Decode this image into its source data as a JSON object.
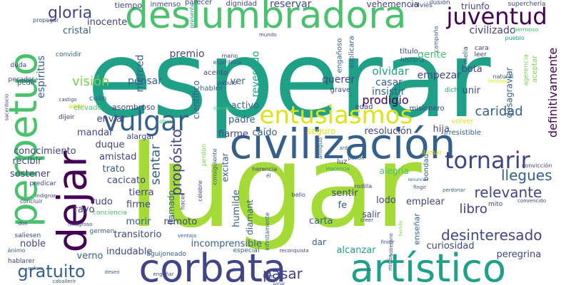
{
  "palette": {
    "background": "#ffffff",
    "green": "#a5db36",
    "midgreen": "#4ac16d",
    "lightgreen": "#7ad151",
    "teal": "#1fa187",
    "blue": "#2a788e",
    "steel": "#355f8d",
    "indigo": "#414487",
    "purple": "#440154",
    "yellow": "#dde318"
  },
  "words": [
    {
      "id": "word-esperar",
      "text": "esperar"
    },
    {
      "id": "word-lugar",
      "text": "lugar"
    },
    {
      "id": "word-deslumbradora",
      "text": "deslumbradora"
    },
    {
      "id": "word-civilizacion",
      "text": "civilización"
    },
    {
      "id": "word-perpetuo",
      "text": "perpetuo"
    },
    {
      "id": "word-artistico",
      "text": "artístico"
    },
    {
      "id": "word-corbata",
      "text": "corbata"
    },
    {
      "id": "word-dejar",
      "text": "dejar"
    },
    {
      "id": "word-entusiasmos",
      "text": "entusiasmos"
    },
    {
      "id": "word-vulgar",
      "text": "vulgar"
    },
    {
      "id": "word-juventud",
      "text": "juventud"
    },
    {
      "id": "word-tornarir",
      "text": "tornarir"
    },
    {
      "id": "word-gloria",
      "text": "gloria"
    },
    {
      "id": "word-desinteresado",
      "text": "desinteresado"
    },
    {
      "id": "word-gratuito",
      "text": "gratuito"
    },
    {
      "id": "word-caridad",
      "text": "caridad"
    },
    {
      "id": "word-relevante",
      "text": "relevante"
    },
    {
      "id": "word-llegues",
      "text": "llegues"
    },
    {
      "id": "word-libro",
      "text": "libro"
    },
    {
      "id": "word-pasar",
      "text": "pasar"
    },
    {
      "id": "word-vision",
      "text": "visión"
    },
    {
      "id": "word-proposito",
      "text": "propósito"
    },
    {
      "id": "word-sentar",
      "text": "sentar"
    },
    {
      "id": "word-prodigio",
      "text": "prodigio"
    },
    {
      "id": "word-definitivamente",
      "text": "definitivamente"
    },
    {
      "id": "word-civilizado",
      "text": "civilizado"
    },
    {
      "id": "word-inocente",
      "text": "inocente"
    },
    {
      "id": "word-cristal",
      "text": "cristal"
    },
    {
      "id": "word-reservar",
      "text": "reservar"
    },
    {
      "id": "word-triunfo",
      "text": "triunfo"
    },
    {
      "id": "word-vehemencia",
      "text": "vehemencia"
    },
    {
      "id": "word-premio",
      "text": "premio"
    },
    {
      "id": "word-merced",
      "text": "merced"
    },
    {
      "id": "word-espiritus",
      "text": "espíritus"
    },
    {
      "id": "word-pensar",
      "text": "pensar"
    },
    {
      "id": "word-ver",
      "text": "ver"
    },
    {
      "id": "word-revestido",
      "text": "revestido"
    },
    {
      "id": "word-olvidar",
      "text": "olvidar"
    },
    {
      "id": "word-casar",
      "text": "casar"
    },
    {
      "id": "word-insistir",
      "text": "insistir"
    },
    {
      "id": "word-querer",
      "text": "querer"
    },
    {
      "id": "word-gente",
      "text": "gente"
    },
    {
      "id": "word-empezar",
      "text": "empezar"
    },
    {
      "id": "word-bota",
      "text": "bota"
    },
    {
      "id": "word-unir",
      "text": "unir"
    },
    {
      "id": "word-desagraviar",
      "text": "desagraviar"
    },
    {
      "id": "word-cientifico",
      "text": "científico"
    },
    {
      "id": "word-activo",
      "text": "activo"
    },
    {
      "id": "word-padre",
      "text": "padre"
    },
    {
      "id": "word-enviar",
      "text": "enviar"
    },
    {
      "id": "word-mandar",
      "text": "mandar"
    },
    {
      "id": "word-conocimiento",
      "text": "conocimiento"
    },
    {
      "id": "word-recibir",
      "text": "recibir"
    },
    {
      "id": "word-sostener",
      "text": "sostener"
    },
    {
      "id": "word-duque",
      "text": "duque"
    },
    {
      "id": "word-amistad",
      "text": "amistad"
    },
    {
      "id": "word-trato",
      "text": "trato"
    },
    {
      "id": "word-cacicato",
      "text": "cacicato"
    },
    {
      "id": "word-tierra",
      "text": "tierra"
    },
    {
      "id": "word-firme",
      "text": "firme"
    },
    {
      "id": "word-rudo",
      "text": "rudo"
    },
    {
      "id": "word-rayo",
      "text": "rayo"
    },
    {
      "id": "word-llamado",
      "text": "llamado"
    },
    {
      "id": "word-remoto",
      "text": "remoto"
    },
    {
      "id": "word-morir",
      "text": "morir"
    },
    {
      "id": "word-transitorio",
      "text": "transitorio"
    },
    {
      "id": "word-indudable",
      "text": "indudable"
    },
    {
      "id": "word-incomprensible",
      "text": "incomprensible"
    },
    {
      "id": "word-alcanzar",
      "text": "alcanzar"
    },
    {
      "id": "word-curiosidad",
      "text": "curiosidad"
    },
    {
      "id": "word-peregrina",
      "text": "peregrina"
    },
    {
      "id": "word-noble",
      "text": "noble"
    },
    {
      "id": "word-verno",
      "text": "verno"
    },
    {
      "id": "word-resolucion",
      "text": "resolución"
    },
    {
      "id": "word-hija",
      "text": "hija"
    },
    {
      "id": "word-fiarme",
      "text": "fiarme"
    },
    {
      "id": "word-caido",
      "text": "caído"
    },
    {
      "id": "word-excitar",
      "text": "excitar"
    },
    {
      "id": "word-humilde",
      "text": "humilde"
    },
    {
      "id": "word-diamant",
      "text": "diamant"
    },
    {
      "id": "word-carta",
      "text": "carta"
    },
    {
      "id": "word-sentir",
      "text": "sentir"
    },
    {
      "id": "word-fe",
      "text": "fe"
    },
    {
      "id": "word-lodo",
      "text": "lodo"
    },
    {
      "id": "word-emplear",
      "text": "emplear"
    },
    {
      "id": "word-ensenar",
      "text": "enseñar"
    },
    {
      "id": "word-dar",
      "text": "dar"
    },
    {
      "id": "word-salir",
      "text": "salir"
    },
    {
      "id": "word-alegria",
      "text": "alegría"
    },
    {
      "id": "word-seguro",
      "text": "seguro"
    },
    {
      "id": "word-tiempo",
      "text": "tiempo"
    },
    {
      "id": "word-inmenso",
      "text": "inmenso"
    },
    {
      "id": "word-parecer",
      "text": "parecer"
    },
    {
      "id": "word-dignidad",
      "text": "dignidad"
    },
    {
      "id": "word-asombroso",
      "text": "asombroso"
    },
    {
      "id": "word-elevado",
      "text": "elevado"
    },
    {
      "id": "word-alargar",
      "text": "alargar"
    },
    {
      "id": "word-acento",
      "text": "acento"
    },
    {
      "id": "word-habler",
      "text": "habler"
    },
    {
      "id": "word-grave",
      "text": "grave"
    },
    {
      "id": "word-misionero",
      "text": "misionero"
    },
    {
      "id": "word-edad",
      "text": "edad"
    },
    {
      "id": "word-suplicara",
      "text": "suplicara"
    },
    {
      "id": "word-enganoso",
      "text": "engañoso"
    },
    {
      "id": "word-titulo",
      "text": "título"
    },
    {
      "id": "word-historia",
      "text": "historia"
    },
    {
      "id": "word-melia",
      "text": "melia"
    },
    {
      "id": "word-cara",
      "text": "cara"
    },
    {
      "id": "word-leer",
      "text": "leer"
    },
    {
      "id": "word-aceptar",
      "text": "aceptar"
    },
    {
      "id": "word-agerencia",
      "text": "agerencia"
    },
    {
      "id": "word-dicho",
      "text": "dicho"
    },
    {
      "id": "word-volver",
      "text": "volver"
    },
    {
      "id": "word-irresistible",
      "text": "irresistible"
    },
    {
      "id": "word-bondad",
      "text": "bondad"
    },
    {
      "id": "word-llamar",
      "text": "llamar"
    },
    {
      "id": "word-mito",
      "text": "mito"
    },
    {
      "id": "word-luz",
      "text": "luz"
    },
    {
      "id": "word-cuan",
      "text": "cuán"
    },
    {
      "id": "word-pedir",
      "text": "pedir"
    },
    {
      "id": "word-convidir",
      "text": "convidir"
    },
    {
      "id": "word-duda",
      "text": "duda"
    },
    {
      "id": "word-pecador",
      "text": "pecador"
    },
    {
      "id": "word-propagar",
      "text": "propagar"
    },
    {
      "id": "word-volvies",
      "text": "volviés"
    },
    {
      "id": "word-ilusion",
      "text": "ilusión"
    },
    {
      "id": "word-supercheria",
      "text": "supercheria"
    },
    {
      "id": "word-hermoso",
      "text": "hermoso"
    },
    {
      "id": "word-pueblo",
      "text": "pueblo"
    },
    {
      "id": "word-campana",
      "text": "campaña"
    },
    {
      "id": "word-presente",
      "text": "presente"
    },
    {
      "id": "word-mundo",
      "text": "mundo"
    },
    {
      "id": "word-mano",
      "text": "mano"
    },
    {
      "id": "word-espiritista",
      "text": "espiritista"
    },
    {
      "id": "word-pabulo",
      "text": "pábulo"
    },
    {
      "id": "word-amor",
      "text": "amor"
    },
    {
      "id": "word-castigo",
      "text": "castigo"
    },
    {
      "id": "word-sacerdocio",
      "text": "sacerdocio"
    },
    {
      "id": "word-dijeir",
      "text": "dijeir"
    },
    {
      "id": "word-obra",
      "text": "obra"
    },
    {
      "id": "word-ignorante",
      "text": "ignorante"
    },
    {
      "id": "word-natural",
      "text": "natural"
    },
    {
      "id": "word-fecundo",
      "text": "fecundo"
    },
    {
      "id": "word-perdon",
      "text": "perdón"
    },
    {
      "id": "word-consiguiente",
      "text": "consiguiente"
    },
    {
      "id": "word-antiguo",
      "text": "antiguo"
    },
    {
      "id": "word-ardor",
      "text": "ardor"
    },
    {
      "id": "word-pasion",
      "text": "pasión"
    },
    {
      "id": "word-herencia",
      "text": "herencia"
    },
    {
      "id": "word-el",
      "text": "él"
    },
    {
      "id": "word-inocencia",
      "text": "inocencia"
    },
    {
      "id": "word-conviccion",
      "text": "convicción"
    },
    {
      "id": "word-predicar",
      "text": "predicar"
    },
    {
      "id": "word-indignar",
      "text": "indignar"
    },
    {
      "id": "word-concluir",
      "text": "concluir"
    },
    {
      "id": "word-hacer",
      "text": "hacer"
    },
    {
      "id": "word-celebre",
      "text": "célebre"
    },
    {
      "id": "word-bello",
      "text": "bello"
    },
    {
      "id": "word-rodilla",
      "text": "rodilla"
    },
    {
      "id": "word-fingir",
      "text": "fingir"
    },
    {
      "id": "word-renunciar",
      "text": "renunciar"
    },
    {
      "id": "word-perdonar",
      "text": "perdonar"
    },
    {
      "id": "word-convencido",
      "text": "convencido"
    },
    {
      "id": "word-conciencia",
      "text": "conciencia"
    },
    {
      "id": "word-germen",
      "text": "germen"
    },
    {
      "id": "word-saliesen",
      "text": "saliesen"
    },
    {
      "id": "word-animo",
      "text": "ánimo"
    },
    {
      "id": "word-hablarer",
      "text": "hablarer"
    },
    {
      "id": "word-esfera",
      "text": "esfera"
    },
    {
      "id": "word-caballerir",
      "text": "caballerir"
    },
    {
      "id": "word-don",
      "text": "don"
    },
    {
      "id": "word-milagroso",
      "text": "milagroso"
    },
    {
      "id": "word-ventaja",
      "text": "ventaja"
    },
    {
      "id": "word-aguijoneado",
      "text": "aguijoneado"
    },
    {
      "id": "word-especial",
      "text": "especial"
    },
    {
      "id": "word-reconquista",
      "text": "reconquista"
    },
    {
      "id": "word-infinitamente",
      "text": "infinitamente"
    },
    {
      "id": "word-creer",
      "text": "creer"
    },
    {
      "id": "word-herido",
      "text": "herido"
    },
    {
      "id": "word-soberano",
      "text": "soberano"
    },
    {
      "id": "word-finisir",
      "text": "finisir"
    },
    {
      "id": "word-ir",
      "text": "ir"
    },
    {
      "id": "word-mision",
      "text": "misión"
    },
    {
      "id": "word-deseo",
      "text": "deseo"
    },
    {
      "id": "word-enganar",
      "text": "engañar"
    },
    {
      "id": "word-bien",
      "text": "bien"
    },
    {
      "id": "word-sonar",
      "text": "sonar"
    }
  ]
}
